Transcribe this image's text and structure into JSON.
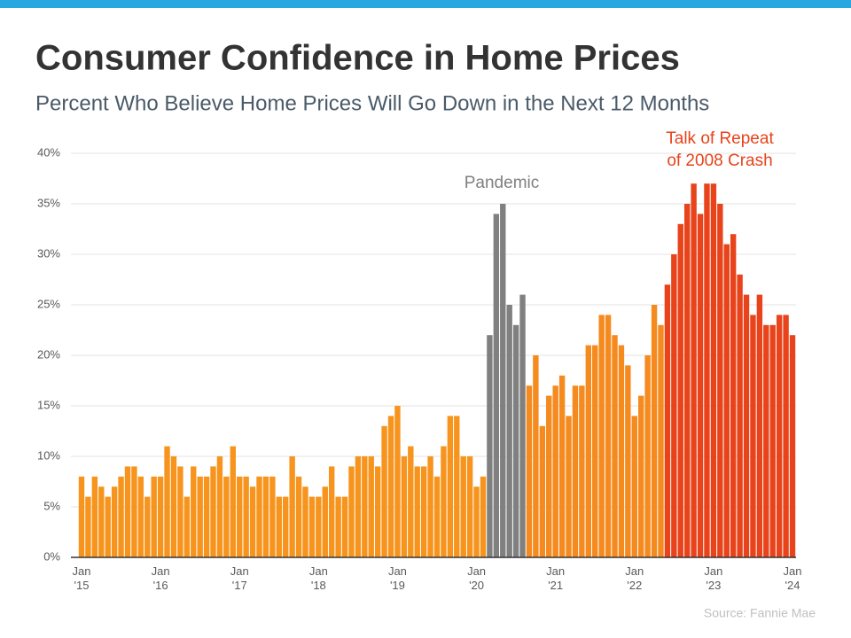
{
  "chart_data": {
    "type": "bar",
    "title": "Consumer Confidence in Home Prices",
    "subtitle": "Percent Who Believe Home Prices Will Go Down in the Next 12 Months",
    "source": "Source: Fannie Mae",
    "annotations": [
      {
        "text": [
          "Pandemic"
        ],
        "color": "#7f7f7f"
      },
      {
        "text": [
          "Talk of Repeat",
          "of 2008 Crash"
        ],
        "color": "#e8431a"
      }
    ],
    "categories": [
      "Jan '15",
      null,
      null,
      null,
      null,
      null,
      null,
      null,
      null,
      null,
      null,
      null,
      "Jan '16",
      null,
      null,
      null,
      null,
      null,
      null,
      null,
      null,
      null,
      null,
      null,
      "Jan '17",
      null,
      null,
      null,
      null,
      null,
      null,
      null,
      null,
      null,
      null,
      null,
      "Jan '18",
      null,
      null,
      null,
      null,
      null,
      null,
      null,
      null,
      null,
      null,
      null,
      "Jan '19",
      null,
      null,
      null,
      null,
      null,
      null,
      null,
      null,
      null,
      null,
      null,
      "Jan '20",
      null,
      null,
      null,
      null,
      null,
      null,
      null,
      null,
      null,
      null,
      null,
      "Jan '21",
      null,
      null,
      null,
      null,
      null,
      null,
      null,
      null,
      null,
      null,
      null,
      "Jan '22",
      null,
      null,
      null,
      null,
      null,
      null,
      null,
      null,
      null,
      null,
      null,
      "Jan '23",
      null,
      null,
      null,
      null,
      null,
      null,
      null,
      null,
      null,
      null,
      null,
      "Jan '24"
    ],
    "values": [
      8,
      6,
      8,
      7,
      6,
      7,
      8,
      9,
      9,
      8,
      6,
      8,
      8,
      11,
      10,
      9,
      6,
      9,
      8,
      8,
      9,
      10,
      8,
      11,
      8,
      8,
      7,
      8,
      8,
      8,
      6,
      6,
      10,
      8,
      7,
      6,
      6,
      7,
      9,
      6,
      6,
      9,
      10,
      10,
      10,
      9,
      13,
      14,
      15,
      10,
      11,
      9,
      9,
      10,
      8,
      11,
      14,
      14,
      10,
      10,
      7,
      8,
      22,
      34,
      35,
      25,
      23,
      26,
      17,
      20,
      13,
      16,
      17,
      18,
      14,
      17,
      17,
      21,
      21,
      24,
      24,
      22,
      21,
      19,
      14,
      16,
      20,
      25,
      23,
      27,
      30,
      33,
      35,
      37,
      34,
      37,
      37,
      35,
      31,
      32,
      28,
      26,
      24,
      26,
      23,
      23,
      24,
      24,
      22
    ],
    "colors": [
      "#f7941d",
      "#f7941d",
      "#f7941d",
      "#f7941d",
      "#f7941d",
      "#f7941d",
      "#f7941d",
      "#f7941d",
      "#f7941d",
      "#f7941d",
      "#f7941d",
      "#f7941d",
      "#f7941d",
      "#f7941d",
      "#f7941d",
      "#f7941d",
      "#f7941d",
      "#f7941d",
      "#f7941d",
      "#f7941d",
      "#f7941d",
      "#f7941d",
      "#f7941d",
      "#f7941d",
      "#f7941d",
      "#f7941d",
      "#f7941d",
      "#f7941d",
      "#f7941d",
      "#f7941d",
      "#f7941d",
      "#f7941d",
      "#f7941d",
      "#f7941d",
      "#f7941d",
      "#f7941d",
      "#f7941d",
      "#f7941d",
      "#f7941d",
      "#f7941d",
      "#f7941d",
      "#f7941d",
      "#f7941d",
      "#f7941d",
      "#f7941d",
      "#f7941d",
      "#f7941d",
      "#f7941d",
      "#f7941d",
      "#f7941d",
      "#f7941d",
      "#f7941d",
      "#f7941d",
      "#f7941d",
      "#f7941d",
      "#f7941d",
      "#f7941d",
      "#f7941d",
      "#f7941d",
      "#f7941d",
      "#f7941d",
      "#f7941d",
      "#808080",
      "#808080",
      "#808080",
      "#808080",
      "#808080",
      "#808080",
      "#f58a1f",
      "#f58a1f",
      "#f58a1f",
      "#f58a1f",
      "#f58a1f",
      "#f58a1f",
      "#f58a1f",
      "#f58a1f",
      "#f58a1f",
      "#f58a1f",
      "#f58a1f",
      "#f58a1f",
      "#f58a1f",
      "#f58a1f",
      "#f58a1f",
      "#f58a1f",
      "#f58a1f",
      "#f58a1f",
      "#f58a1f",
      "#f58a1f",
      "#f58a1f",
      "#e8431a",
      "#e8431a",
      "#e8431a",
      "#e8431a",
      "#e8431a",
      "#e8431a",
      "#e8431a",
      "#e8431a",
      "#e8431a",
      "#e8431a",
      "#e8431a",
      "#e8431a",
      "#e8431a",
      "#e8431a",
      "#e8431a",
      "#e8431a",
      "#e8431a",
      "#e8431a",
      "#e8431a",
      "#e8431a"
    ],
    "ylim": [
      0,
      40
    ],
    "yticks": [
      {
        "value": 0,
        "label": "0%"
      },
      {
        "value": 5,
        "label": "5%"
      },
      {
        "value": 10,
        "label": "10%"
      },
      {
        "value": 15,
        "label": "15%"
      },
      {
        "value": 20,
        "label": "20%"
      },
      {
        "value": 25,
        "label": "25%"
      },
      {
        "value": 30,
        "label": "30%"
      },
      {
        "value": 35,
        "label": "35%"
      },
      {
        "value": 40,
        "label": "40%"
      }
    ],
    "grid": true
  }
}
